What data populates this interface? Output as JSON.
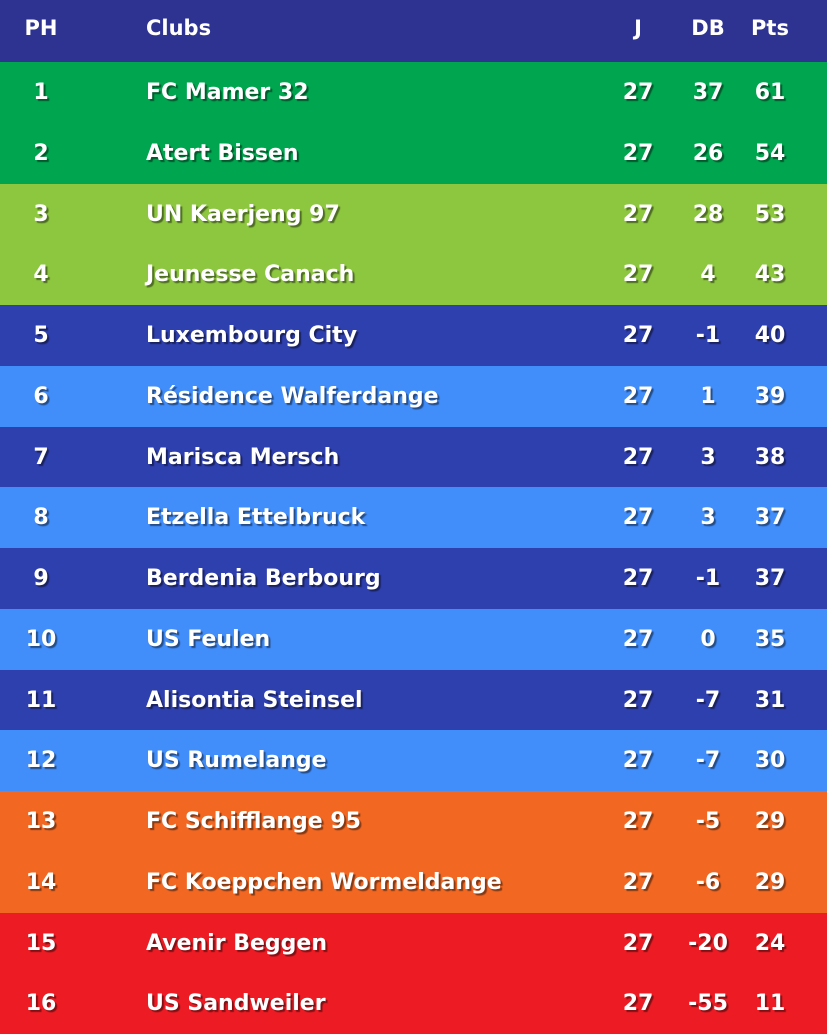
{
  "header": {
    "pos": "PH",
    "club": "Clubs",
    "played": "J",
    "goal_diff": "DB",
    "points": "Pts"
  },
  "colors": {
    "header": "#2e3290",
    "promotion": "#00a54f",
    "qualification": "#8dc63f",
    "dark_blue": "#2e3fae",
    "light_blue": "#418dfa",
    "playoff": "#f26722",
    "relegation": "#ed1c24"
  },
  "rows": [
    {
      "pos": "1",
      "club": "FC Mamer 32",
      "played": "27",
      "goal_diff": "37",
      "points": "61",
      "color": "#00a54f"
    },
    {
      "pos": "2",
      "club": "Atert Bissen",
      "played": "27",
      "goal_diff": "26",
      "points": "54",
      "color": "#00a54f"
    },
    {
      "pos": "3",
      "club": "UN Kaerjeng 97",
      "played": "27",
      "goal_diff": "28",
      "points": "53",
      "color": "#8dc63f"
    },
    {
      "pos": "4",
      "club": "Jeunesse Canach",
      "played": "27",
      "goal_diff": "4",
      "points": "43",
      "color": "#8dc63f"
    },
    {
      "pos": "5",
      "club": "Luxembourg City",
      "played": "27",
      "goal_diff": "-1",
      "points": "40",
      "color": "#2e3fae"
    },
    {
      "pos": "6",
      "club": "Résidence Walferdange",
      "played": "27",
      "goal_diff": "1",
      "points": "39",
      "color": "#418dfa"
    },
    {
      "pos": "7",
      "club": "Marisca Mersch",
      "played": "27",
      "goal_diff": "3",
      "points": "38",
      "color": "#2e3fae"
    },
    {
      "pos": "8",
      "club": "Etzella Ettelbruck",
      "played": "27",
      "goal_diff": "3",
      "points": "37",
      "color": "#418dfa"
    },
    {
      "pos": "9",
      "club": "Berdenia Berbourg",
      "played": "27",
      "goal_diff": "-1",
      "points": "37",
      "color": "#2e3fae"
    },
    {
      "pos": "10",
      "club": "US Feulen",
      "played": "27",
      "goal_diff": "0",
      "points": "35",
      "color": "#418dfa"
    },
    {
      "pos": "11",
      "club": "Alisontia Steinsel",
      "played": "27",
      "goal_diff": "-7",
      "points": "31",
      "color": "#2e3fae"
    },
    {
      "pos": "12",
      "club": "US Rumelange",
      "played": "27",
      "goal_diff": "-7",
      "points": "30",
      "color": "#418dfa"
    },
    {
      "pos": "13",
      "club": "FC Schifflange 95",
      "played": "27",
      "goal_diff": "-5",
      "points": "29",
      "color": "#f26722"
    },
    {
      "pos": "14",
      "club": "FC Koeppchen Wormeldange",
      "played": "27",
      "goal_diff": "-6",
      "points": "29",
      "color": "#f26722"
    },
    {
      "pos": "15",
      "club": "Avenir Beggen",
      "played": "27",
      "goal_diff": "-20",
      "points": "24",
      "color": "#ed1c24"
    },
    {
      "pos": "16",
      "club": "US Sandweiler",
      "played": "27",
      "goal_diff": "-55",
      "points": "11",
      "color": "#ed1c24"
    }
  ]
}
